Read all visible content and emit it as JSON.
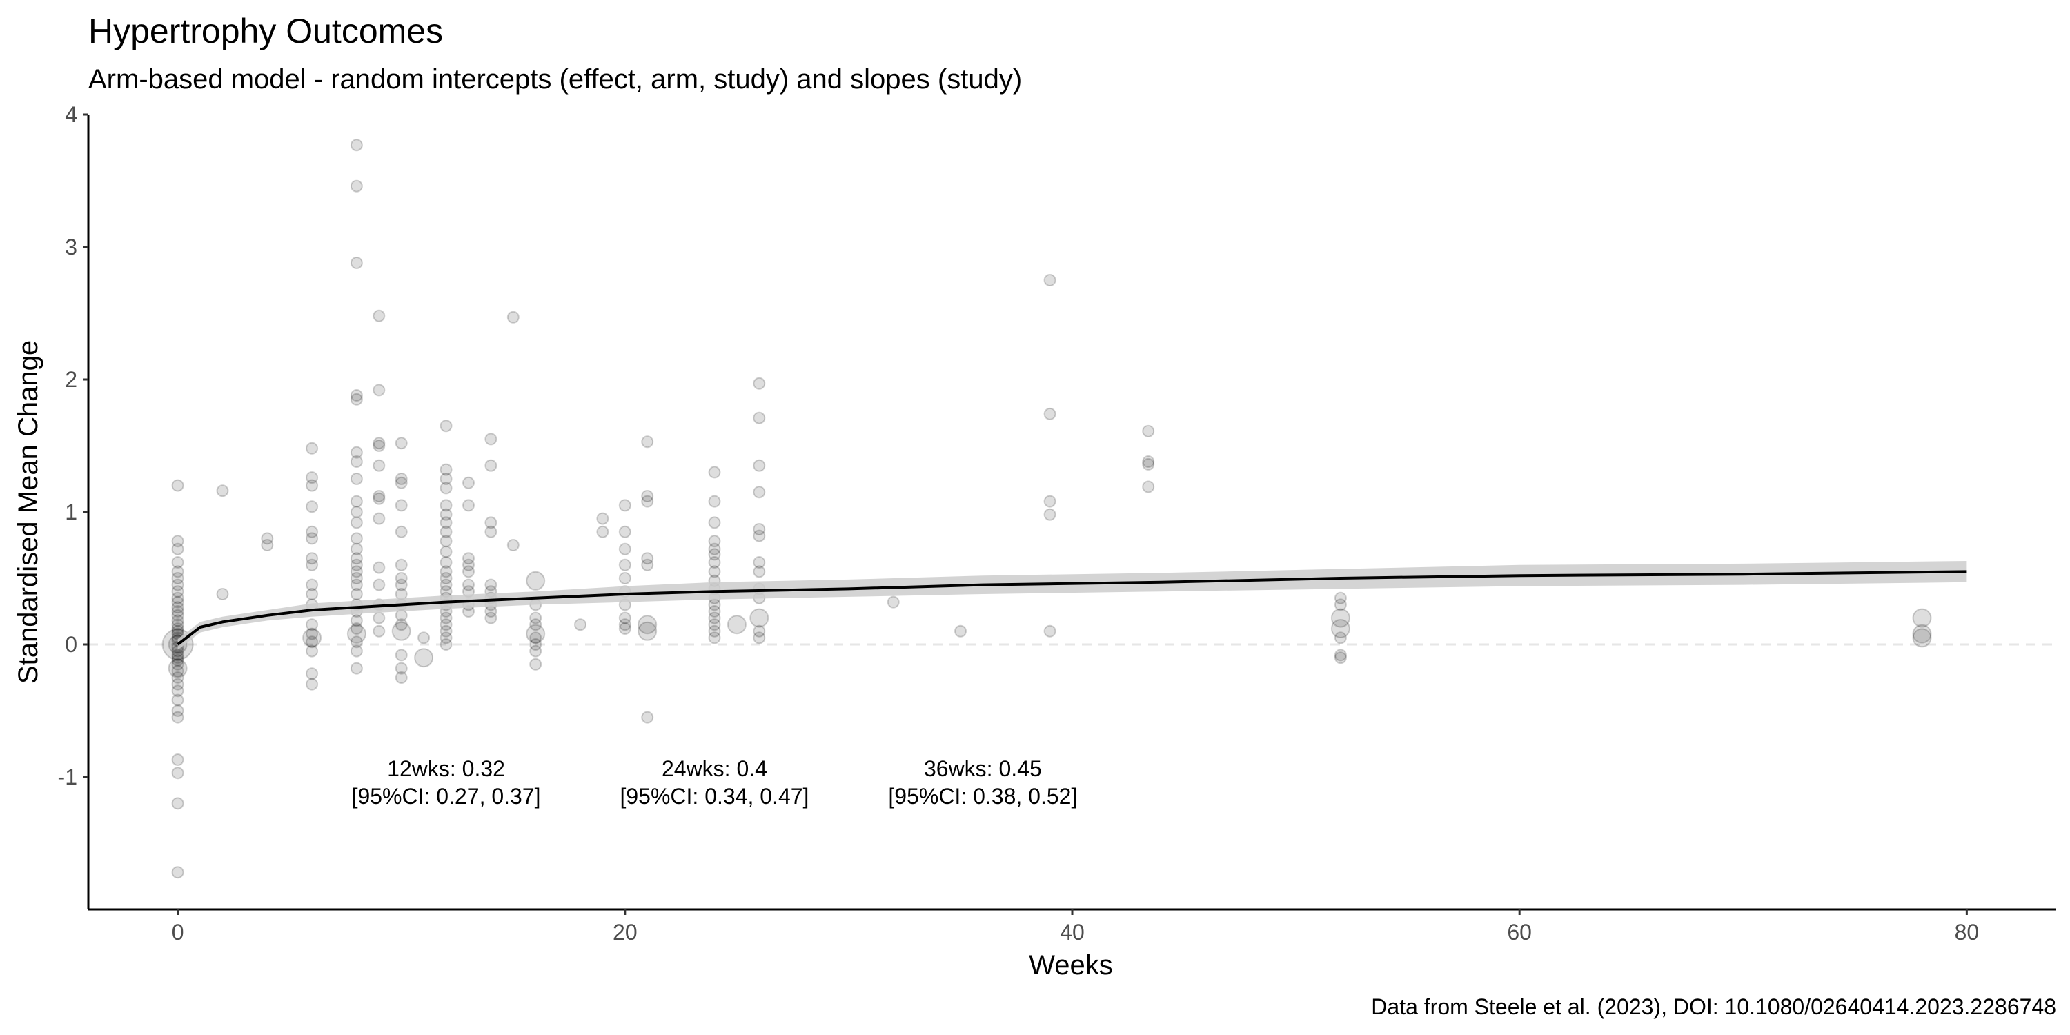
{
  "title": "Hypertrophy Outcomes",
  "subtitle": "Arm-based model - random intercepts (effect, arm, study) and slopes (study)",
  "caption": "Data from Steele et al. (2023), DOI: 10.1080/02640414.2023.2286748",
  "chart_data": {
    "type": "scatter",
    "title": "Hypertrophy Outcomes",
    "subtitle": "Arm-based model - random intercepts (effect, arm, study) and slopes (study)",
    "xlabel": "Weeks",
    "ylabel": "Standardised Mean Change",
    "xlim": [
      -4,
      84
    ],
    "ylim": [
      -2,
      4
    ],
    "x_ticks": [
      0,
      20,
      40,
      60,
      80
    ],
    "y_ticks": [
      -1,
      0,
      1,
      2,
      3,
      4
    ],
    "reference_line": {
      "y": 0,
      "style": "dashed"
    },
    "colors": {
      "points": "#000000",
      "ribbon": "#cccccc",
      "line": "#000000",
      "refline": "#e6e6e6"
    },
    "fit": {
      "x": [
        0,
        1,
        2,
        4,
        6,
        8,
        12,
        16,
        20,
        24,
        30,
        36,
        44,
        52,
        60,
        70,
        80
      ],
      "y": [
        0.0,
        0.13,
        0.17,
        0.22,
        0.26,
        0.28,
        0.32,
        0.35,
        0.38,
        0.4,
        0.42,
        0.45,
        0.47,
        0.5,
        0.52,
        0.53,
        0.55
      ],
      "lower": [
        -0.04,
        0.09,
        0.13,
        0.18,
        0.21,
        0.23,
        0.27,
        0.3,
        0.32,
        0.34,
        0.36,
        0.38,
        0.4,
        0.42,
        0.44,
        0.45,
        0.47
      ],
      "upper": [
        0.04,
        0.17,
        0.21,
        0.26,
        0.31,
        0.33,
        0.37,
        0.4,
        0.44,
        0.47,
        0.49,
        0.52,
        0.54,
        0.57,
        0.6,
        0.61,
        0.63
      ]
    },
    "annotations": [
      {
        "x": 12,
        "y": -1.1,
        "line1": "12wks: 0.32",
        "line2": "[95%CI: 0.27, 0.37]"
      },
      {
        "x": 24,
        "y": -1.1,
        "line1": "24wks: 0.4",
        "line2": "[95%CI: 0.34, 0.47]"
      },
      {
        "x": 36,
        "y": -1.1,
        "line1": "36wks: 0.45",
        "line2": "[95%CI: 0.38, 0.52]"
      }
    ],
    "points": [
      [
        0,
        1.2,
        1
      ],
      [
        0,
        0.78,
        1
      ],
      [
        0,
        0.72,
        1
      ],
      [
        0,
        0.62,
        1
      ],
      [
        0,
        0.55,
        1
      ],
      [
        0,
        0.5,
        1
      ],
      [
        0,
        0.45,
        1
      ],
      [
        0,
        0.4,
        1
      ],
      [
        0,
        0.35,
        1
      ],
      [
        0,
        0.32,
        1
      ],
      [
        0,
        0.28,
        1
      ],
      [
        0,
        0.25,
        1
      ],
      [
        0,
        0.22,
        1
      ],
      [
        0,
        0.18,
        1
      ],
      [
        0,
        0.15,
        1
      ],
      [
        0,
        0.12,
        1
      ],
      [
        0,
        0.1,
        1
      ],
      [
        0,
        0.08,
        1
      ],
      [
        0,
        0.05,
        1
      ],
      [
        0,
        0.03,
        1
      ],
      [
        0,
        0.0,
        3
      ],
      [
        0,
        0.0,
        2
      ],
      [
        0,
        -0.02,
        1
      ],
      [
        0,
        -0.05,
        1
      ],
      [
        0,
        -0.08,
        1
      ],
      [
        0,
        -0.1,
        1
      ],
      [
        0,
        -0.12,
        1
      ],
      [
        0,
        -0.15,
        1
      ],
      [
        0,
        -0.18,
        2
      ],
      [
        0,
        -0.2,
        1
      ],
      [
        0,
        -0.25,
        1
      ],
      [
        0,
        -0.3,
        1
      ],
      [
        0,
        -0.35,
        1
      ],
      [
        0,
        -0.42,
        1
      ],
      [
        0,
        -0.5,
        1
      ],
      [
        0,
        -0.55,
        1
      ],
      [
        0,
        -0.87,
        1
      ],
      [
        0,
        -0.97,
        1
      ],
      [
        0,
        -1.2,
        1
      ],
      [
        0,
        -1.72,
        1
      ],
      [
        2,
        1.16,
        1
      ],
      [
        2,
        0.38,
        1
      ],
      [
        4,
        0.8,
        1
      ],
      [
        4,
        0.75,
        1
      ],
      [
        6,
        1.48,
        1
      ],
      [
        6,
        1.26,
        1
      ],
      [
        6,
        1.2,
        1
      ],
      [
        6,
        1.04,
        1
      ],
      [
        6,
        0.85,
        1
      ],
      [
        6,
        0.8,
        1
      ],
      [
        6,
        0.65,
        1
      ],
      [
        6,
        0.6,
        1
      ],
      [
        6,
        0.45,
        1
      ],
      [
        6,
        0.38,
        1
      ],
      [
        6,
        0.3,
        1
      ],
      [
        6,
        0.15,
        1
      ],
      [
        6,
        0.08,
        1
      ],
      [
        6,
        0.05,
        2
      ],
      [
        6,
        0.02,
        1
      ],
      [
        6,
        -0.05,
        1
      ],
      [
        6,
        -0.22,
        1
      ],
      [
        6,
        -0.3,
        1
      ],
      [
        8,
        3.77,
        1
      ],
      [
        8,
        3.46,
        1
      ],
      [
        8,
        2.88,
        1
      ],
      [
        8,
        1.88,
        1
      ],
      [
        8,
        1.85,
        1
      ],
      [
        8,
        1.45,
        1
      ],
      [
        8,
        1.38,
        1
      ],
      [
        8,
        1.25,
        1
      ],
      [
        8,
        1.08,
        1
      ],
      [
        8,
        1.0,
        1
      ],
      [
        8,
        0.92,
        1
      ],
      [
        8,
        0.8,
        1
      ],
      [
        8,
        0.72,
        1
      ],
      [
        8,
        0.65,
        1
      ],
      [
        8,
        0.6,
        1
      ],
      [
        8,
        0.55,
        1
      ],
      [
        8,
        0.5,
        1
      ],
      [
        8,
        0.45,
        1
      ],
      [
        8,
        0.38,
        1
      ],
      [
        8,
        0.3,
        1
      ],
      [
        8,
        0.25,
        1
      ],
      [
        8,
        0.18,
        1
      ],
      [
        8,
        0.12,
        1
      ],
      [
        8,
        0.08,
        2
      ],
      [
        8,
        0.02,
        1
      ],
      [
        8,
        -0.05,
        1
      ],
      [
        8,
        -0.18,
        1
      ],
      [
        9,
        2.48,
        1
      ],
      [
        9,
        1.92,
        1
      ],
      [
        9,
        1.52,
        1
      ],
      [
        9,
        1.5,
        1
      ],
      [
        9,
        1.35,
        1
      ],
      [
        9,
        1.12,
        1
      ],
      [
        9,
        1.1,
        1
      ],
      [
        9,
        0.95,
        1
      ],
      [
        9,
        0.58,
        1
      ],
      [
        9,
        0.45,
        1
      ],
      [
        9,
        0.3,
        1
      ],
      [
        9,
        0.2,
        1
      ],
      [
        9,
        0.1,
        1
      ],
      [
        10,
        1.52,
        1
      ],
      [
        10,
        1.25,
        1
      ],
      [
        10,
        1.22,
        1
      ],
      [
        10,
        1.05,
        1
      ],
      [
        10,
        0.85,
        1
      ],
      [
        10,
        0.6,
        1
      ],
      [
        10,
        0.5,
        1
      ],
      [
        10,
        0.45,
        1
      ],
      [
        10,
        0.38,
        1
      ],
      [
        10,
        0.3,
        1
      ],
      [
        10,
        0.22,
        1
      ],
      [
        10,
        0.15,
        1
      ],
      [
        10,
        0.1,
        2
      ],
      [
        10,
        -0.08,
        1
      ],
      [
        10,
        -0.18,
        1
      ],
      [
        10,
        -0.25,
        1
      ],
      [
        11,
        0.05,
        1
      ],
      [
        11,
        -0.1,
        2
      ],
      [
        12,
        1.65,
        1
      ],
      [
        12,
        1.32,
        1
      ],
      [
        12,
        1.25,
        1
      ],
      [
        12,
        1.18,
        1
      ],
      [
        12,
        1.05,
        1
      ],
      [
        12,
        0.98,
        1
      ],
      [
        12,
        0.92,
        1
      ],
      [
        12,
        0.85,
        1
      ],
      [
        12,
        0.78,
        1
      ],
      [
        12,
        0.7,
        1
      ],
      [
        12,
        0.62,
        1
      ],
      [
        12,
        0.55,
        1
      ],
      [
        12,
        0.5,
        1
      ],
      [
        12,
        0.45,
        1
      ],
      [
        12,
        0.4,
        1
      ],
      [
        12,
        0.35,
        1
      ],
      [
        12,
        0.3,
        1
      ],
      [
        12,
        0.25,
        1
      ],
      [
        12,
        0.2,
        1
      ],
      [
        12,
        0.15,
        1
      ],
      [
        12,
        0.1,
        1
      ],
      [
        12,
        0.05,
        1
      ],
      [
        12,
        0.0,
        1
      ],
      [
        13,
        1.22,
        1
      ],
      [
        13,
        1.05,
        1
      ],
      [
        13,
        0.65,
        1
      ],
      [
        13,
        0.6,
        1
      ],
      [
        13,
        0.55,
        1
      ],
      [
        13,
        0.45,
        1
      ],
      [
        13,
        0.4,
        1
      ],
      [
        13,
        0.3,
        1
      ],
      [
        13,
        0.25,
        1
      ],
      [
        14,
        1.55,
        1
      ],
      [
        14,
        1.35,
        1
      ],
      [
        14,
        0.92,
        1
      ],
      [
        14,
        0.85,
        1
      ],
      [
        14,
        0.45,
        1
      ],
      [
        14,
        0.4,
        1
      ],
      [
        14,
        0.35,
        1
      ],
      [
        14,
        0.3,
        1
      ],
      [
        14,
        0.25,
        1
      ],
      [
        14,
        0.2,
        1
      ],
      [
        15,
        2.47,
        1
      ],
      [
        15,
        0.75,
        1
      ],
      [
        16,
        0.48,
        2
      ],
      [
        16,
        0.3,
        1
      ],
      [
        16,
        0.2,
        1
      ],
      [
        16,
        0.15,
        1
      ],
      [
        16,
        0.08,
        2
      ],
      [
        16,
        0.05,
        1
      ],
      [
        16,
        0.0,
        1
      ],
      [
        16,
        -0.05,
        1
      ],
      [
        16,
        -0.15,
        1
      ],
      [
        18,
        0.15,
        1
      ],
      [
        19,
        0.95,
        1
      ],
      [
        19,
        0.85,
        1
      ],
      [
        20,
        1.05,
        1
      ],
      [
        20,
        0.85,
        1
      ],
      [
        20,
        0.72,
        1
      ],
      [
        20,
        0.6,
        1
      ],
      [
        20,
        0.5,
        1
      ],
      [
        20,
        0.4,
        1
      ],
      [
        20,
        0.3,
        1
      ],
      [
        20,
        0.2,
        1
      ],
      [
        20,
        0.15,
        1
      ],
      [
        20,
        0.12,
        1
      ],
      [
        21,
        1.53,
        1
      ],
      [
        21,
        1.12,
        1
      ],
      [
        21,
        1.08,
        1
      ],
      [
        21,
        0.65,
        1
      ],
      [
        21,
        0.6,
        1
      ],
      [
        21,
        0.15,
        2
      ],
      [
        21,
        0.1,
        2
      ],
      [
        21,
        -0.55,
        1
      ],
      [
        24,
        1.3,
        1
      ],
      [
        24,
        1.08,
        1
      ],
      [
        24,
        0.92,
        1
      ],
      [
        24,
        0.78,
        1
      ],
      [
        24,
        0.72,
        1
      ],
      [
        24,
        0.68,
        1
      ],
      [
        24,
        0.62,
        1
      ],
      [
        24,
        0.55,
        1
      ],
      [
        24,
        0.48,
        1
      ],
      [
        24,
        0.42,
        1
      ],
      [
        24,
        0.35,
        1
      ],
      [
        24,
        0.3,
        1
      ],
      [
        24,
        0.25,
        1
      ],
      [
        24,
        0.2,
        1
      ],
      [
        24,
        0.15,
        1
      ],
      [
        24,
        0.1,
        1
      ],
      [
        24,
        0.05,
        1
      ],
      [
        25,
        0.15,
        2
      ],
      [
        26,
        1.97,
        1
      ],
      [
        26,
        1.71,
        1
      ],
      [
        26,
        1.35,
        1
      ],
      [
        26,
        1.15,
        1
      ],
      [
        26,
        0.87,
        1
      ],
      [
        26,
        0.82,
        1
      ],
      [
        26,
        0.62,
        1
      ],
      [
        26,
        0.55,
        1
      ],
      [
        26,
        0.42,
        1
      ],
      [
        26,
        0.35,
        1
      ],
      [
        26,
        0.2,
        2
      ],
      [
        26,
        0.1,
        1
      ],
      [
        26,
        0.05,
        1
      ],
      [
        32,
        0.32,
        1
      ],
      [
        35,
        0.1,
        1
      ],
      [
        39,
        2.75,
        1
      ],
      [
        39,
        1.74,
        1
      ],
      [
        39,
        1.08,
        1
      ],
      [
        39,
        0.98,
        1
      ],
      [
        39,
        0.1,
        1
      ],
      [
        43.4,
        1.61,
        1
      ],
      [
        43.4,
        1.38,
        1
      ],
      [
        43.4,
        1.36,
        1
      ],
      [
        43.4,
        1.19,
        1
      ],
      [
        52,
        0.35,
        1
      ],
      [
        52,
        0.3,
        1
      ],
      [
        52,
        0.2,
        2
      ],
      [
        52,
        0.12,
        2
      ],
      [
        52,
        0.05,
        1
      ],
      [
        52,
        -0.08,
        1
      ],
      [
        52,
        -0.1,
        1
      ],
      [
        78,
        0.2,
        2
      ],
      [
        78,
        0.08,
        2
      ],
      [
        78,
        0.05,
        2
      ]
    ]
  }
}
